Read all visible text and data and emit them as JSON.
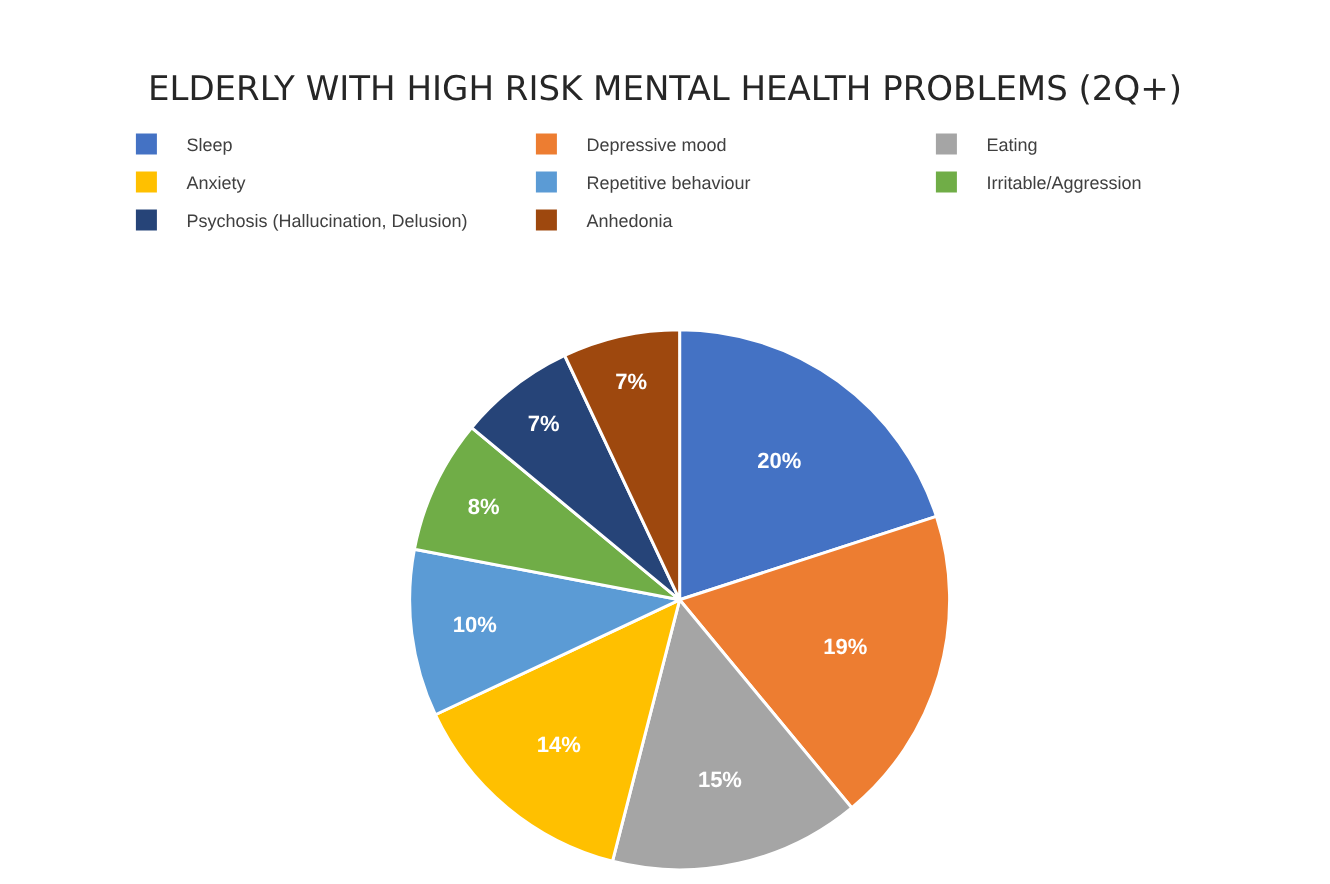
{
  "chart_data": {
    "type": "pie",
    "title": "ELDERLY WITH HIGH RISK MENTAL HEALTH PROBLEMS (2Q+)",
    "categories": [
      "Sleep",
      "Depressive mood",
      "Eating",
      "Anxiety",
      "Repetitive behaviour",
      "Irritable/Aggression",
      "Psychosis (Hallucination, Delusion)",
      "Anhedonia"
    ],
    "values": [
      20,
      19,
      15,
      14,
      10,
      8,
      7,
      7
    ],
    "colors": [
      "#4472c4",
      "#ed7d31",
      "#a5a5a5",
      "#ffc000",
      "#5b9bd5",
      "#70ad47",
      "#264478",
      "#9e480e"
    ],
    "value_labels": [
      "20%",
      "19%",
      "15%",
      "14%",
      "10%",
      "8%",
      "7%",
      "7%"
    ],
    "legend": "top"
  }
}
